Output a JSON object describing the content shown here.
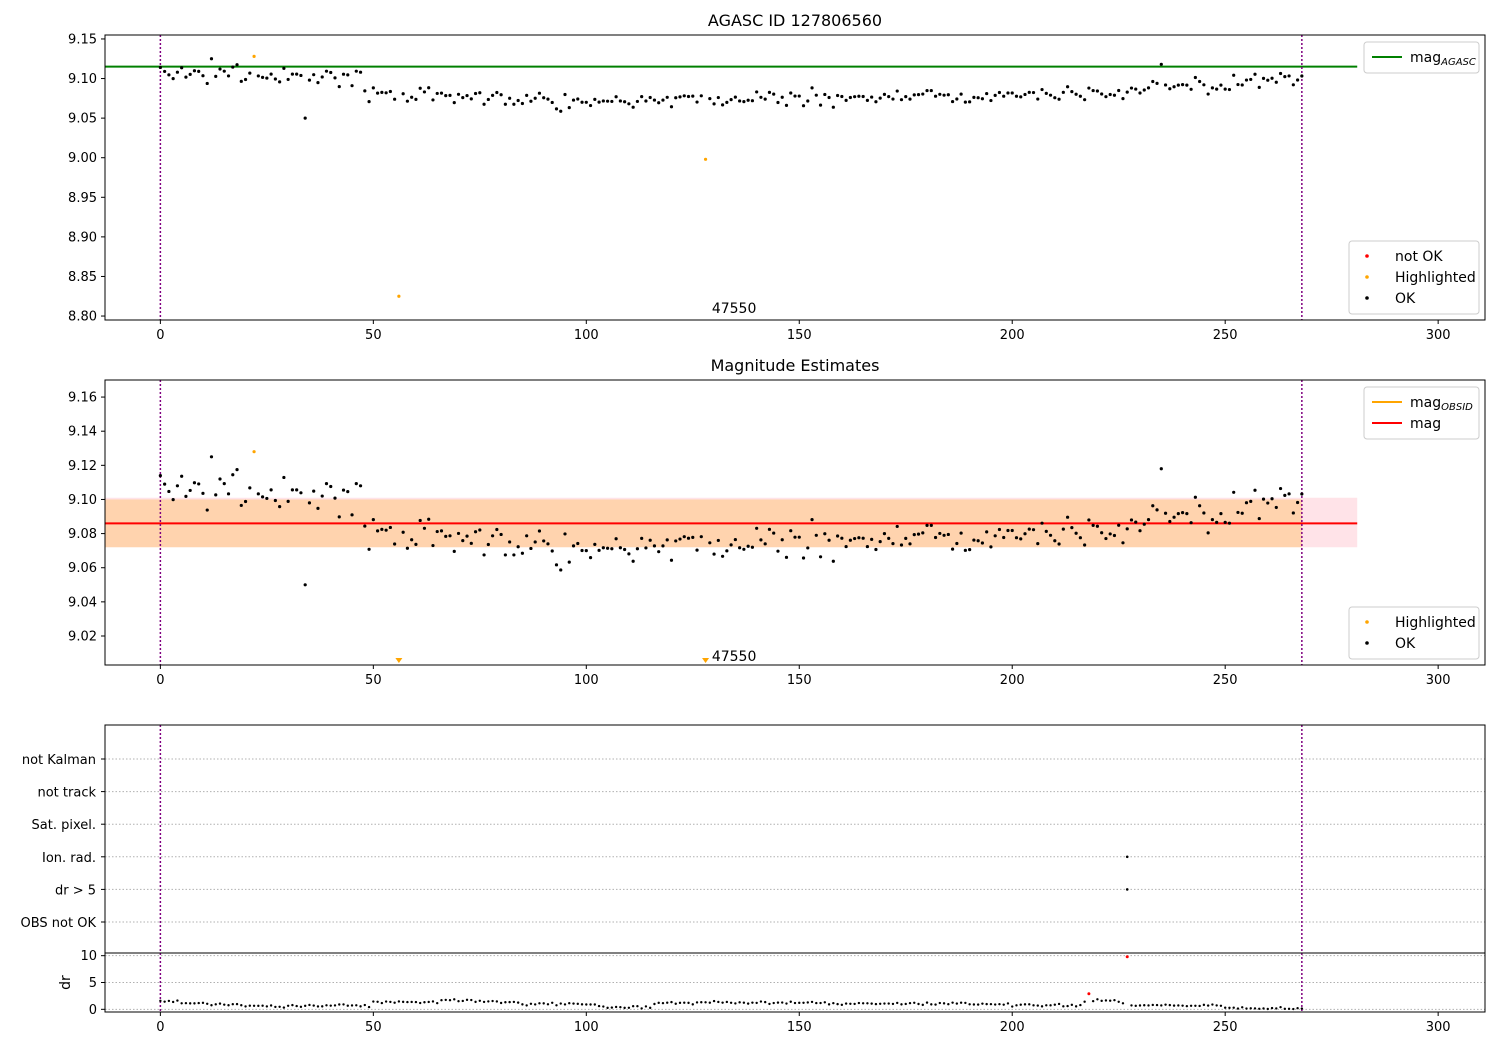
{
  "chart_data": [
    {
      "type": "scatter",
      "title": "AGASC ID 127806560",
      "xlabel": "",
      "ylabel": "",
      "xlim": [
        -13,
        311
      ],
      "ylim": [
        8.795,
        9.155
      ],
      "xticks": [
        0,
        50,
        100,
        150,
        200,
        250,
        300
      ],
      "yticks": [
        8.8,
        8.85,
        8.9,
        8.95,
        9.0,
        9.05,
        9.1,
        9.15
      ],
      "ytick_decimals": 2,
      "vlines": [
        0,
        268
      ],
      "hline": {
        "name": "mag_AGASC",
        "y": 9.115,
        "color": "#008000",
        "x_end": 281
      },
      "series": [
        {
          "name": "not OK",
          "color": "#ff0000",
          "x": [],
          "y": []
        },
        {
          "name": "Highlighted",
          "color": "#ffa500",
          "x": [
            22,
            56,
            128
          ],
          "y": [
            9.128,
            8.825,
            8.998
          ]
        },
        {
          "name": "OK",
          "color": "#000000",
          "x": [],
          "y": []
        }
      ],
      "annotations": [
        {
          "text": "47550",
          "x": 129,
          "y": 8.805
        }
      ],
      "legends": [
        {
          "position": "top-right",
          "entries": [
            {
              "label": "mag",
              "sub": "AGASC",
              "kind": "line",
              "color": "#008000"
            }
          ]
        },
        {
          "position": "bottom-right",
          "entries": [
            {
              "label": "not OK",
              "kind": "dot",
              "color": "#ff0000"
            },
            {
              "label": "Highlighted",
              "kind": "dot",
              "color": "#ffa500"
            },
            {
              "label": "OK",
              "kind": "dot",
              "color": "#000000"
            }
          ]
        }
      ]
    },
    {
      "type": "scatter",
      "title": "Magnitude Estimates",
      "xlabel": "",
      "ylabel": "",
      "xlim": [
        -13,
        311
      ],
      "ylim": [
        9.003,
        9.17
      ],
      "xticks": [
        0,
        50,
        100,
        150,
        200,
        250,
        300
      ],
      "yticks": [
        9.02,
        9.04,
        9.06,
        9.08,
        9.1,
        9.12,
        9.14,
        9.16
      ],
      "ytick_decimals": 2,
      "vlines": [
        0,
        268
      ],
      "bands": [
        {
          "y0": 9.072,
          "y1": 9.101,
          "x_end": 281,
          "color": "#ffc0cb",
          "opacity": 0.45
        },
        {
          "y0": 9.072,
          "y1": 9.1,
          "x_end": 268,
          "color": "#ffa500",
          "opacity": 0.25
        }
      ],
      "hline": {
        "name": "mag",
        "y": 9.086,
        "color": "#ff0000",
        "x_end": 281
      },
      "series": [
        {
          "name": "Highlighted",
          "color": "#ffa500",
          "x": [
            22
          ],
          "y": [
            9.128
          ]
        },
        {
          "name": "OK",
          "color": "#000000",
          "x": [],
          "y": []
        }
      ],
      "offscale_markers": [
        {
          "x": 56,
          "color": "#ffa500"
        },
        {
          "x": 128,
          "color": "#ffa500"
        }
      ],
      "annotations": [
        {
          "text": "47550",
          "x": 129,
          "y": 9.006
        }
      ],
      "legends": [
        {
          "position": "top-right",
          "entries": [
            {
              "label": "mag",
              "sub": "OBSID",
              "kind": "line",
              "color": "#ffa500"
            },
            {
              "label": "mag",
              "sub": "",
              "kind": "line",
              "color": "#ff0000"
            }
          ]
        },
        {
          "position": "bottom-right",
          "entries": [
            {
              "label": "Highlighted",
              "kind": "dot",
              "color": "#ffa500"
            },
            {
              "label": "OK",
              "kind": "dot",
              "color": "#000000"
            }
          ]
        }
      ]
    },
    {
      "type": "scatter",
      "title": "",
      "xlabel": "",
      "ylabel": "",
      "xlim": [
        -13,
        311
      ],
      "categories": [
        "not Kalman",
        "not track",
        "Sat. pixel.",
        "Ion. rad.",
        "dr > 5",
        "OBS not OK"
      ],
      "vlines": [
        0,
        268
      ],
      "flags": [
        {
          "category": "Ion. rad.",
          "x": [
            227
          ]
        },
        {
          "category": "dr > 5",
          "x": [
            227
          ]
        }
      ]
    },
    {
      "type": "scatter",
      "title": "",
      "xlabel": "",
      "ylabel": "dr",
      "xlim": [
        -13,
        311
      ],
      "ylim": [
        -0.5,
        10.5
      ],
      "xticks": [
        0,
        50,
        100,
        150,
        200,
        250,
        300
      ],
      "yticks": [
        0,
        5,
        10
      ],
      "ytick_decimals": 0,
      "vlines": [
        0,
        268
      ],
      "series": [
        {
          "name": "OK",
          "color": "#000000",
          "x": [],
          "y": []
        },
        {
          "name": "not OK",
          "color": "#ff0000",
          "x": [
            218,
            227
          ],
          "y": [
            2.9,
            9.8
          ]
        }
      ]
    }
  ]
}
